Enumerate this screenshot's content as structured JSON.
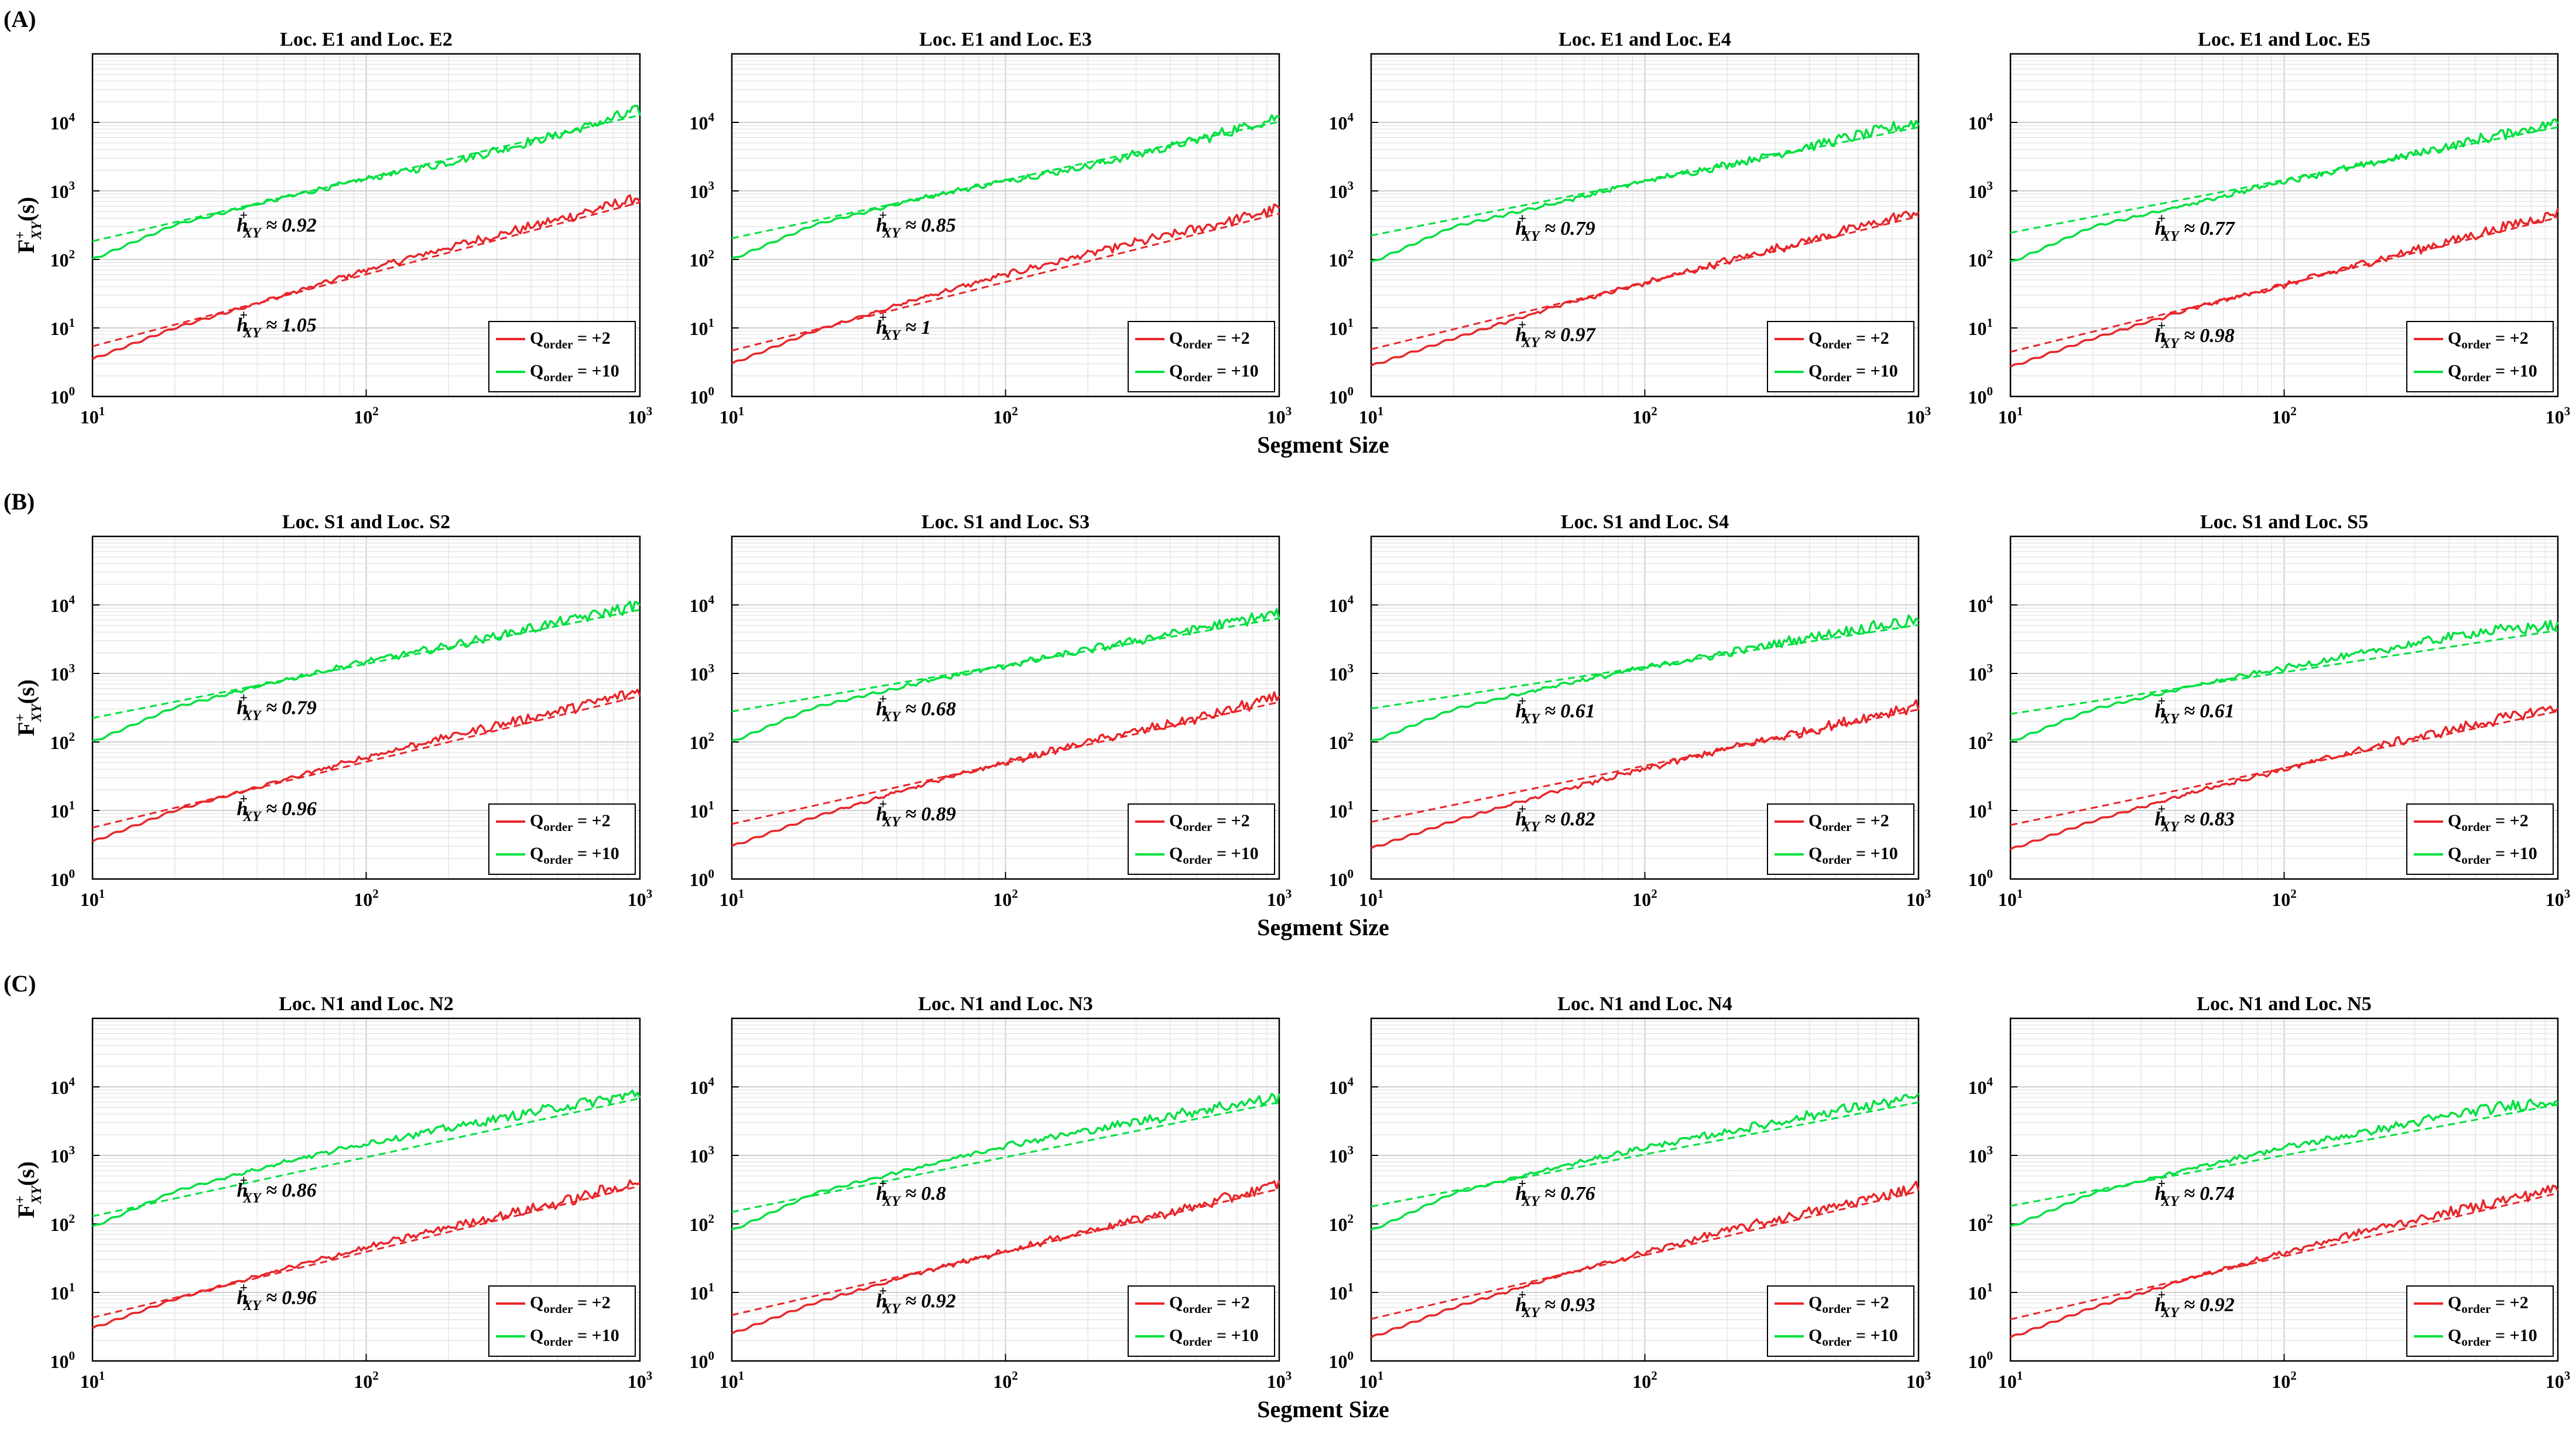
{
  "chart_data": {
    "type": "line",
    "figure_xlabel": "Segment Size",
    "ylabel": "F+XY(s)",
    "xscale": "log",
    "yscale": "log",
    "xlim": [
      10,
      1000
    ],
    "ylim": [
      1,
      100000
    ],
    "x_ticks": [
      "10^1",
      "10^2",
      "10^3"
    ],
    "y_ticks": [
      "10^0",
      "10^1",
      "10^2",
      "10^3",
      "10^4"
    ],
    "legend": {
      "placement": "bottom-right",
      "entries": [
        {
          "label": "Qorder = +2",
          "color": "#e8262a"
        },
        {
          "label": "Qorder = +10",
          "color": "#00e040"
        }
      ]
    },
    "rows": [
      {
        "label": "(A)",
        "panels": [
          {
            "title": "Loc. E1 and Loc. E2",
            "series": [
              {
                "name": "Qorder = +2",
                "color": "#e8262a",
                "x": [
                  10,
                  20,
                  50,
                  100,
                  200,
                  500,
                  1000
                ],
                "y": [
                  3.5,
                  10,
                  30,
                  70,
                  150,
                  380,
                  800
                ],
                "fit_slope": 1.05,
                "annotation": "≈ 1.05"
              },
              {
                "name": "Qorder = +10",
                "color": "#00e040",
                "x": [
                  10,
                  20,
                  50,
                  100,
                  200,
                  500,
                  1000
                ],
                "y": [
                  100,
                  320,
                  800,
                  1500,
                  2600,
                  6500,
                  15000
                ],
                "fit_slope": 0.92,
                "annotation": "≈ 0.92"
              }
            ]
          },
          {
            "title": "Loc. E1 and Loc. E3",
            "series": [
              {
                "name": "Qorder = +2",
                "color": "#e8262a",
                "x": [
                  10,
                  20,
                  50,
                  100,
                  200,
                  500,
                  1000
                ],
                "y": [
                  3,
                  9,
                  28,
                  60,
                  120,
                  280,
                  550
                ],
                "fit_slope": 1,
                "annotation": "≈ 1"
              },
              {
                "name": "Qorder = +10",
                "color": "#00e040",
                "x": [
                  10,
                  20,
                  50,
                  100,
                  200,
                  500,
                  1000
                ],
                "y": [
                  100,
                  320,
                  800,
                  1400,
                  2300,
                  5500,
                  12000
                ],
                "fit_slope": 0.85,
                "annotation": "≈ 0.85"
              }
            ]
          },
          {
            "title": "Loc. E1 and Loc. E4",
            "series": [
              {
                "name": "Qorder = +2",
                "color": "#e8262a",
                "x": [
                  10,
                  20,
                  50,
                  100,
                  200,
                  500,
                  1000
                ],
                "y": [
                  2.8,
                  7,
                  22,
                  45,
                  95,
                  240,
                  500
                ],
                "fit_slope": 0.97,
                "annotation": "≈ 0.97"
              },
              {
                "name": "Qorder = +10",
                "color": "#00e040",
                "x": [
                  10,
                  20,
                  50,
                  100,
                  200,
                  500,
                  1000
                ],
                "y": [
                  90,
                  300,
                  700,
                  1400,
                  2400,
                  5500,
                  10000
                ],
                "fit_slope": 0.79,
                "annotation": "≈ 0.79"
              }
            ]
          },
          {
            "title": "Loc. E1 and Loc. E5",
            "series": [
              {
                "name": "Qorder = +2",
                "color": "#e8262a",
                "x": [
                  10,
                  20,
                  50,
                  100,
                  200,
                  500,
                  1000
                ],
                "y": [
                  2.7,
                  7,
                  21,
                  42,
                  90,
                  230,
                  480
                ],
                "fit_slope": 0.98,
                "annotation": "≈ 0.98"
              },
              {
                "name": "Qorder = +10",
                "color": "#00e040",
                "x": [
                  10,
                  20,
                  50,
                  100,
                  200,
                  500,
                  1000
                ],
                "y": [
                  90,
                  300,
                  700,
                  1400,
                  2400,
                  5500,
                  10000
                ],
                "fit_slope": 0.77,
                "annotation": "≈ 0.77"
              }
            ]
          }
        ]
      },
      {
        "label": "(B)",
        "panels": [
          {
            "title": "Loc. S1 and Loc. S2",
            "series": [
              {
                "name": "Qorder = +2",
                "color": "#e8262a",
                "x": [
                  10,
                  20,
                  50,
                  100,
                  200,
                  500,
                  1000
                ],
                "y": [
                  3.5,
                  10,
                  28,
                  60,
                  120,
                  280,
                  550
                ],
                "fit_slope": 0.96,
                "annotation": "≈ 0.96"
              },
              {
                "name": "Qorder = +10",
                "color": "#00e040",
                "x": [
                  10,
                  20,
                  50,
                  100,
                  200,
                  500,
                  1000
                ],
                "y": [
                  100,
                  320,
                  800,
                  1500,
                  2500,
                  5500,
                  10000
                ],
                "fit_slope": 0.79,
                "annotation": "≈ 0.79"
              }
            ]
          },
          {
            "title": "Loc. S1 and Loc. S3",
            "series": [
              {
                "name": "Qorder = +2",
                "color": "#e8262a",
                "x": [
                  10,
                  20,
                  50,
                  100,
                  200,
                  500,
                  1000
                ],
                "y": [
                  3,
                  8,
                  24,
                  50,
                  100,
                  220,
                  450
                ],
                "fit_slope": 0.89,
                "annotation": "≈ 0.89"
              },
              {
                "name": "Qorder = +10",
                "color": "#00e040",
                "x": [
                  10,
                  20,
                  50,
                  100,
                  200,
                  500,
                  1000
                ],
                "y": [
                  100,
                  320,
                  750,
                  1300,
                  2200,
                  4500,
                  7500
                ],
                "fit_slope": 0.68,
                "annotation": "≈ 0.68"
              }
            ]
          },
          {
            "title": "Loc. S1 and Loc. S4",
            "series": [
              {
                "name": "Qorder = +2",
                "color": "#e8262a",
                "x": [
                  10,
                  20,
                  50,
                  100,
                  200,
                  500,
                  1000
                ],
                "y": [
                  2.8,
                  7,
                  20,
                  40,
                  80,
                  180,
                  350
                ],
                "fit_slope": 0.82,
                "annotation": "≈ 0.82"
              },
              {
                "name": "Qorder = +10",
                "color": "#00e040",
                "x": [
                  10,
                  20,
                  50,
                  100,
                  200,
                  500,
                  1000
                ],
                "y": [
                  100,
                  300,
                  700,
                  1200,
                  2000,
                  4000,
                  6000
                ],
                "fit_slope": 0.61,
                "annotation": "≈ 0.61"
              }
            ]
          },
          {
            "title": "Loc. S1 and Loc. S5",
            "series": [
              {
                "name": "Qorder = +2",
                "color": "#e8262a",
                "x": [
                  10,
                  20,
                  50,
                  100,
                  200,
                  500,
                  1000
                ],
                "y": [
                  2.7,
                  7,
                  20,
                  40,
                  80,
                  180,
                  330
                ],
                "fit_slope": 0.83,
                "annotation": "≈ 0.83"
              },
              {
                "name": "Qorder = +10",
                "color": "#00e040",
                "x": [
                  10,
                  20,
                  50,
                  100,
                  200,
                  500,
                  1000
                ],
                "y": [
                  100,
                  300,
                  700,
                  1200,
                  2000,
                  4000,
                  5000
                ],
                "fit_slope": 0.61,
                "annotation": "≈ 0.61"
              }
            ]
          }
        ]
      },
      {
        "label": "(C)",
        "panels": [
          {
            "title": "Loc. N1 and Loc. N2",
            "series": [
              {
                "name": "Qorder = +2",
                "color": "#e8262a",
                "x": [
                  10,
                  20,
                  50,
                  100,
                  200,
                  500,
                  1000
                ],
                "y": [
                  3,
                  8,
                  22,
                  45,
                  90,
                  200,
                  420
                ],
                "fit_slope": 0.96,
                "annotation": "≈ 0.96"
              },
              {
                "name": "Qorder = +10",
                "color": "#00e040",
                "x": [
                  10,
                  20,
                  50,
                  100,
                  200,
                  500,
                  1000
                ],
                "y": [
                  90,
                  300,
                  800,
                  1500,
                  2500,
                  5000,
                  8000
                ],
                "fit_slope": 0.86,
                "annotation": "≈ 0.86"
              }
            ]
          },
          {
            "title": "Loc. N1 and Loc. N3",
            "series": [
              {
                "name": "Qorder = +2",
                "color": "#e8262a",
                "x": [
                  10,
                  20,
                  50,
                  100,
                  200,
                  500,
                  1000
                ],
                "y": [
                  2.5,
                  7,
                  20,
                  40,
                  80,
                  180,
                  380
                ],
                "fit_slope": 0.92,
                "annotation": "≈ 0.92"
              },
              {
                "name": "Qorder = +10",
                "color": "#00e040",
                "x": [
                  10,
                  20,
                  50,
                  100,
                  200,
                  500,
                  1000
                ],
                "y": [
                  80,
                  280,
                  700,
                  1400,
                  2300,
                  4500,
                  7000
                ],
                "fit_slope": 0.8,
                "annotation": "≈ 0.8"
              }
            ]
          },
          {
            "title": "Loc. N1 and Loc. N4",
            "series": [
              {
                "name": "Qorder = +2",
                "color": "#e8262a",
                "x": [
                  10,
                  20,
                  50,
                  100,
                  200,
                  500,
                  1000
                ],
                "y": [
                  2.2,
                  6,
                  18,
                  38,
                  80,
                  180,
                  350
                ],
                "fit_slope": 0.93,
                "annotation": "≈ 0.93"
              },
              {
                "name": "Qorder = +10",
                "color": "#00e040",
                "x": [
                  10,
                  20,
                  50,
                  100,
                  200,
                  500,
                  1000
                ],
                "y": [
                  80,
                  280,
                  700,
                  1300,
                  2200,
                  4500,
                  7000
                ],
                "fit_slope": 0.76,
                "annotation": "≈ 0.76"
              }
            ]
          },
          {
            "title": "Loc. N1 and Loc. N5",
            "series": [
              {
                "name": "Qorder = +2",
                "color": "#e8262a",
                "x": [
                  10,
                  20,
                  50,
                  100,
                  200,
                  500,
                  1000
                ],
                "y": [
                  2.2,
                  6,
                  18,
                  38,
                  80,
                  180,
                  330
                ],
                "fit_slope": 0.92,
                "annotation": "≈ 0.92"
              },
              {
                "name": "Qorder = +10",
                "color": "#00e040",
                "x": [
                  10,
                  20,
                  50,
                  100,
                  200,
                  500,
                  1000
                ],
                "y": [
                  90,
                  280,
                  700,
                  1300,
                  2200,
                  4500,
                  6500
                ],
                "fit_slope": 0.74,
                "annotation": "≈ 0.74"
              }
            ]
          }
        ]
      }
    ]
  }
}
